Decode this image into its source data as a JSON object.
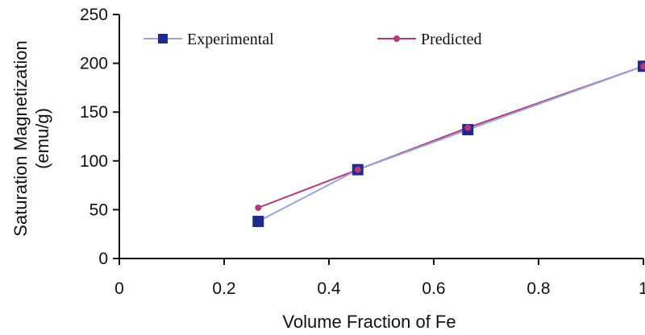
{
  "chart_data": {
    "type": "line",
    "xlabel": "Volume Fraction of Fe",
    "ylabel_lines": [
      "Saturation Magnetization",
      "(emu/g)"
    ],
    "xlim": [
      0,
      1
    ],
    "ylim": [
      0,
      250
    ],
    "x_ticks": [
      "0",
      "0.2",
      "0.4",
      "0.6",
      "0.8",
      "1"
    ],
    "y_ticks": [
      "0",
      "50",
      "100",
      "150",
      "200",
      "250"
    ],
    "grid": false,
    "legend_position": "top",
    "series": [
      {
        "name": "Experimental",
        "color": "#1f2a8a",
        "line_color": "#9aa6d6",
        "marker": "square",
        "x": [
          0.265,
          0.455,
          0.665,
          1.0
        ],
        "y": [
          38,
          91,
          132,
          197
        ]
      },
      {
        "name": "Predicted",
        "color": "#b23a7a",
        "line_color": "#b23a7a",
        "marker": "circle",
        "x": [
          0.265,
          0.455,
          0.665,
          1.0
        ],
        "y": [
          52,
          91,
          134,
          197
        ]
      }
    ]
  }
}
